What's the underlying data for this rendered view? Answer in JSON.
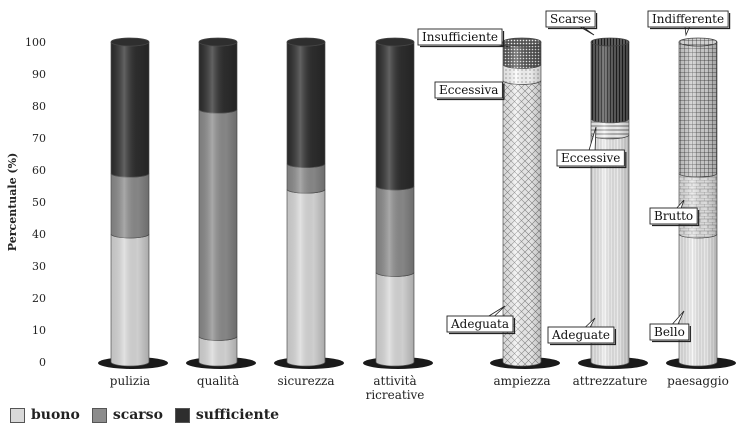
{
  "colors": {
    "buono": "#d9d9d9",
    "scarso": "#8c8c8c",
    "sufficiente": "#2e2e2e"
  },
  "legend": [
    {
      "key": "buono",
      "label": "buono"
    },
    {
      "key": "scarso",
      "label": "scarso"
    },
    {
      "key": "sufficiente",
      "label": "sufficiente"
    }
  ],
  "chart_data": [
    {
      "type": "bar",
      "stacked": true,
      "style": "3d-cylinder",
      "ylabel": "Percentuale (%)",
      "ylim": [
        0,
        100
      ],
      "yticks": [
        0,
        10,
        20,
        30,
        40,
        50,
        60,
        70,
        80,
        90,
        100
      ],
      "categories": [
        {
          "lines": [
            "pulizia"
          ]
        },
        {
          "lines": [
            "qualità"
          ]
        },
        {
          "lines": [
            "sicurezza"
          ]
        },
        {
          "lines": [
            "attività",
            "ricreative"
          ]
        }
      ],
      "series": [
        {
          "name": "buono",
          "values": [
            40,
            8,
            54,
            28
          ]
        },
        {
          "name": "scarso",
          "values": [
            19,
            71,
            8,
            27
          ]
        },
        {
          "name": "sufficiente",
          "values": [
            41,
            21,
            38,
            45
          ]
        }
      ]
    },
    {
      "type": "bar",
      "stacked": true,
      "style": "3d-cylinder-patterned",
      "categories": [
        "ampiezza",
        "attrezzature",
        "paesaggio"
      ],
      "columns": [
        {
          "segments": [
            {
              "label": "Adeguata",
              "value": 88,
              "pattern": "crosshatch"
            },
            {
              "label": "Eccessiva",
              "value": 5,
              "pattern": "dots-light"
            },
            {
              "label": "Insufficiente",
              "value": 7,
              "pattern": "dots-dark"
            }
          ]
        },
        {
          "segments": [
            {
              "label": "Adeguate",
              "value": 71,
              "pattern": "vertical-light"
            },
            {
              "label": "Eccessive",
              "value": 5,
              "pattern": "horizontal"
            },
            {
              "label": "Scarse",
              "value": 24,
              "pattern": "vertical-dark"
            }
          ]
        },
        {
          "segments": [
            {
              "label": "Bello",
              "value": 40,
              "pattern": "vertical-light"
            },
            {
              "label": "Brutto",
              "value": 19,
              "pattern": "brick"
            },
            {
              "label": "Indifferente",
              "value": 41,
              "pattern": "grid"
            }
          ]
        }
      ]
    }
  ]
}
